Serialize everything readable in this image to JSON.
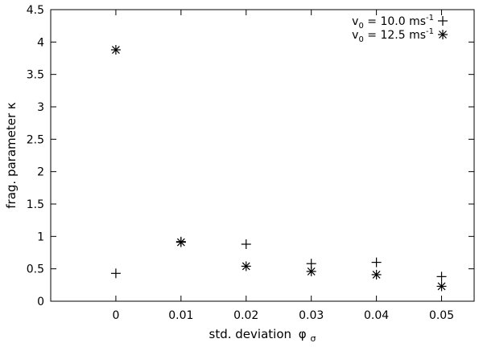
{
  "chart_data": {
    "type": "scatter",
    "title": "",
    "xlabel": "std. deviation",
    "xlabel_symbol": "φ",
    "xlabel_subscript": "σ",
    "ylabel": "frag. parameter κ",
    "xlim": [
      -0.01,
      0.055
    ],
    "ylim": [
      0,
      4.5
    ],
    "xticks": [
      0,
      0.01,
      0.02,
      0.03,
      0.04,
      0.05
    ],
    "xtick_labels": [
      "0",
      "0.01",
      "0.02",
      "0.03",
      "0.04",
      "0.05"
    ],
    "yticks": [
      0,
      0.5,
      1,
      1.5,
      2,
      2.5,
      3,
      3.5,
      4,
      4.5
    ],
    "ytick_labels": [
      "0",
      "0.5",
      "1",
      "1.5",
      "2",
      "2.5",
      "3",
      "3.5",
      "4",
      "4.5"
    ],
    "grid": false,
    "legend_position": "top-right",
    "series": [
      {
        "name": "v0 = 10.0 ms-1",
        "legend_main": "v",
        "legend_sub": "0",
        "legend_mid": " = 10.0 ms",
        "legend_sup": "-1",
        "marker": "plus",
        "x": [
          0,
          0.01,
          0.02,
          0.03,
          0.04,
          0.05
        ],
        "y": [
          0.43,
          0.92,
          0.88,
          0.58,
          0.6,
          0.38
        ]
      },
      {
        "name": "v0 = 12.5 ms-1",
        "legend_main": "v",
        "legend_sub": "0",
        "legend_mid": " = 12.5 ms",
        "legend_sup": "-1",
        "marker": "star",
        "x": [
          0,
          0.01,
          0.02,
          0.03,
          0.04,
          0.05
        ],
        "y": [
          3.88,
          0.91,
          0.54,
          0.46,
          0.41,
          0.23
        ]
      }
    ]
  }
}
